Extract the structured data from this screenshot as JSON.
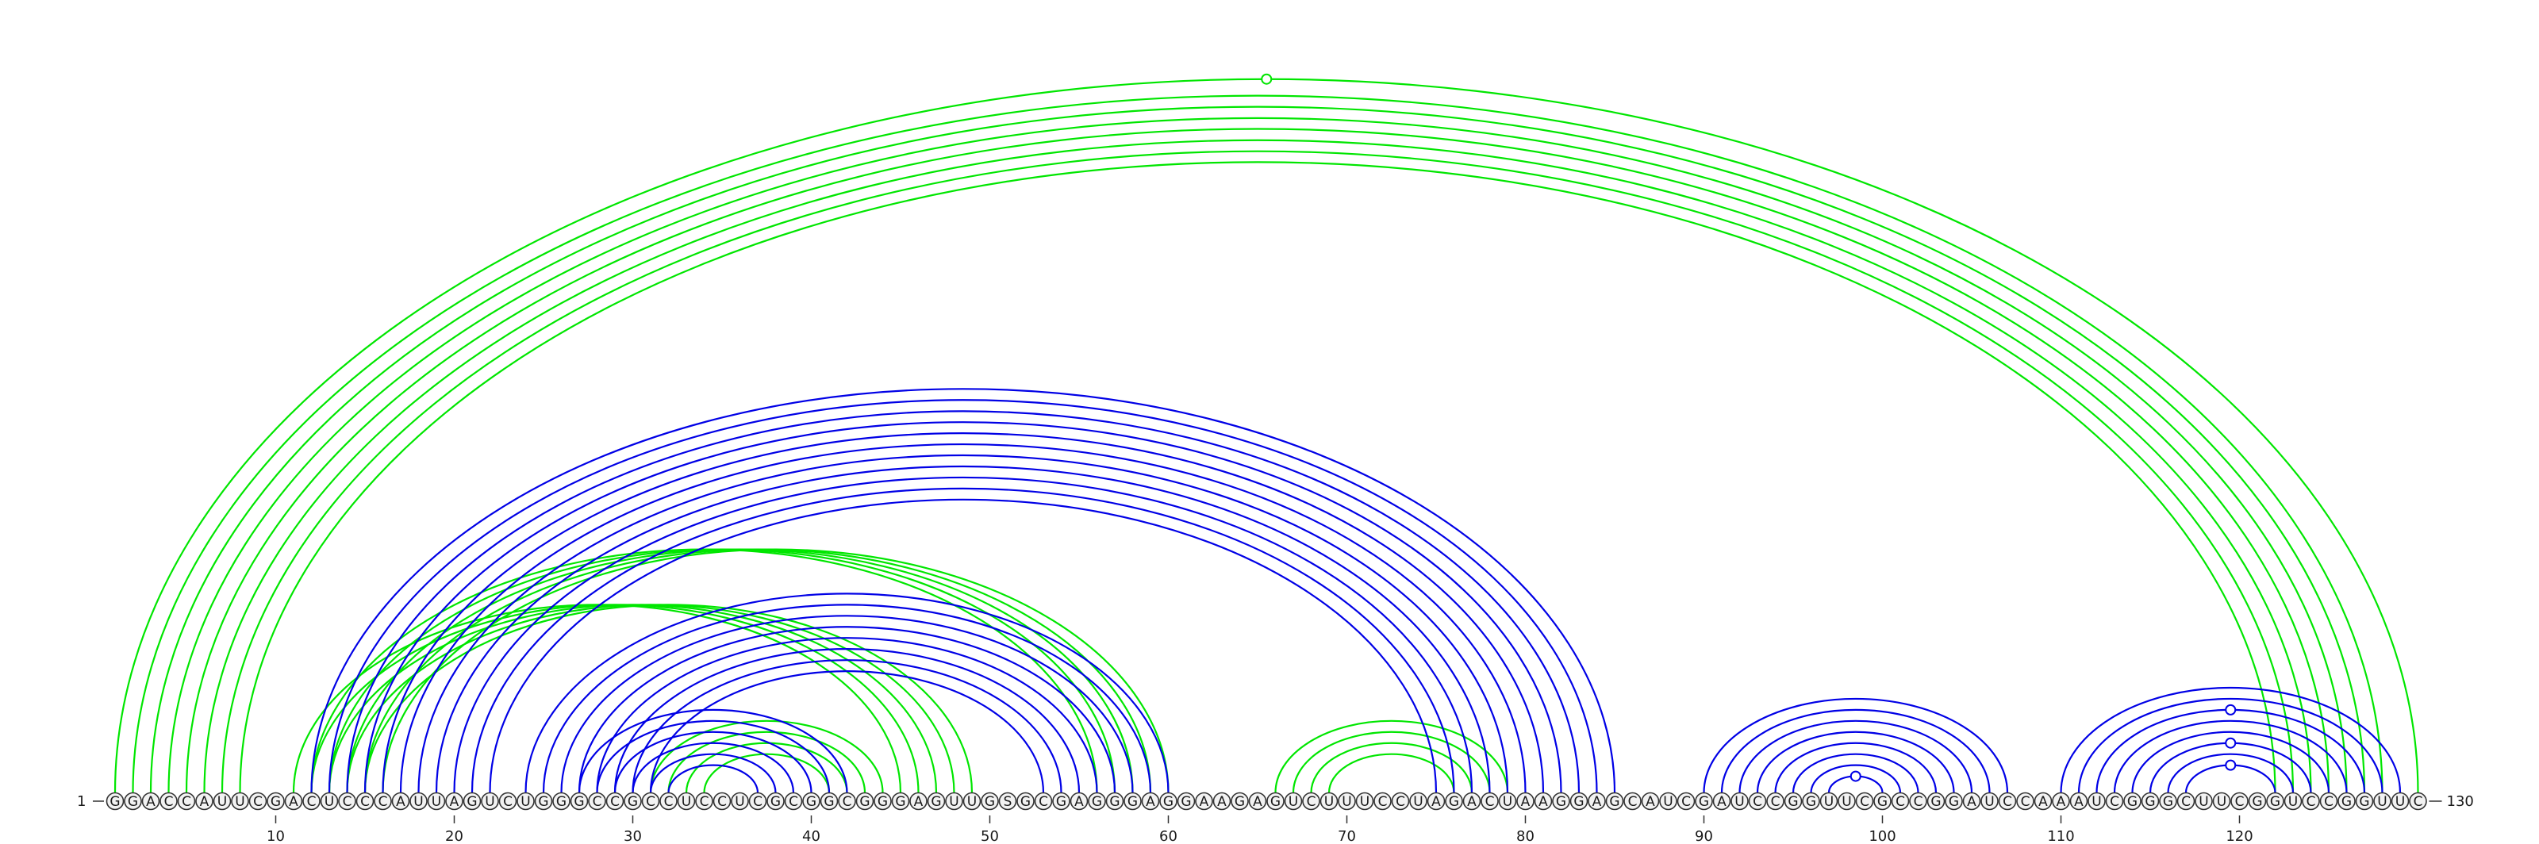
{
  "sequence": "GGACCAUUCGACUCCCAUUAGUCUGGGCCGCCUCCUCGCGGCGGGAGUUGSGCGAGGGAGGAAGAGUCUUUCCUAGACUAAGGAGCAUCGAUCCGGUUCGCCGGAUCCAAAUCGGGCUUCGGUCCGGUUC",
  "start_label": "1",
  "end_label": "130",
  "ticks": [
    {
      "position": 10,
      "label": "10"
    },
    {
      "position": 20,
      "label": "20"
    },
    {
      "position": 30,
      "label": "30"
    },
    {
      "position": 40,
      "label": "40"
    },
    {
      "position": 50,
      "label": "50"
    },
    {
      "position": 60,
      "label": "60"
    },
    {
      "position": 70,
      "label": "70"
    },
    {
      "position": 80,
      "label": "80"
    },
    {
      "position": 90,
      "label": "90"
    },
    {
      "position": 100,
      "label": "100"
    },
    {
      "position": 110,
      "label": "110"
    },
    {
      "position": 120,
      "label": "120"
    }
  ],
  "colors": {
    "green_structure": "#00e600",
    "blue_structure": "#0000e6"
  },
  "arcs_green": [
    [
      1,
      130
    ],
    [
      2,
      128
    ],
    [
      3,
      127
    ],
    [
      4,
      126
    ],
    [
      5,
      125
    ],
    [
      6,
      124
    ],
    [
      7,
      123
    ],
    [
      8,
      122
    ],
    [
      12,
      56
    ],
    [
      13,
      57
    ],
    [
      14,
      58
    ],
    [
      15,
      59
    ],
    [
      16,
      60
    ],
    [
      11,
      45
    ],
    [
      12,
      46
    ],
    [
      13,
      47
    ],
    [
      14,
      48
    ],
    [
      15,
      49
    ],
    [
      31,
      44
    ],
    [
      32,
      43
    ],
    [
      33,
      42
    ],
    [
      34,
      41
    ],
    [
      66,
      79
    ],
    [
      67,
      78
    ],
    [
      68,
      77
    ],
    [
      69,
      76
    ]
  ],
  "arcs_blue": [
    [
      12,
      85
    ],
    [
      13,
      84
    ],
    [
      14,
      83
    ],
    [
      15,
      82
    ],
    [
      16,
      81
    ],
    [
      17,
      80
    ],
    [
      18,
      79
    ],
    [
      19,
      78
    ],
    [
      20,
      77
    ],
    [
      21,
      76
    ],
    [
      22,
      75
    ],
    [
      24,
      60
    ],
    [
      25,
      59
    ],
    [
      26,
      58
    ],
    [
      27,
      57
    ],
    [
      28,
      56
    ],
    [
      29,
      55
    ],
    [
      30,
      54
    ],
    [
      31,
      53
    ],
    [
      27,
      42
    ],
    [
      28,
      41
    ],
    [
      29,
      40
    ],
    [
      30,
      39
    ],
    [
      31,
      38
    ],
    [
      32,
      37
    ],
    [
      90,
      107
    ],
    [
      91,
      106
    ],
    [
      92,
      105
    ],
    [
      93,
      104
    ],
    [
      94,
      103
    ],
    [
      95,
      102
    ],
    [
      96,
      101
    ],
    [
      97,
      100
    ],
    [
      110,
      129
    ],
    [
      111,
      128
    ],
    [
      112,
      127
    ],
    [
      113,
      126
    ],
    [
      114,
      125
    ],
    [
      115,
      124
    ],
    [
      116,
      123
    ],
    [
      117,
      122
    ]
  ],
  "open_markers": [
    {
      "pair": [
        1,
        130
      ],
      "color": "green"
    },
    {
      "pair": [
        97,
        100
      ],
      "color": "blue"
    },
    {
      "pair": [
        117,
        122
      ],
      "color": "blue"
    },
    {
      "pair": [
        115,
        124
      ],
      "color": "blue"
    },
    {
      "pair": [
        112,
        127
      ],
      "color": "blue"
    }
  ]
}
